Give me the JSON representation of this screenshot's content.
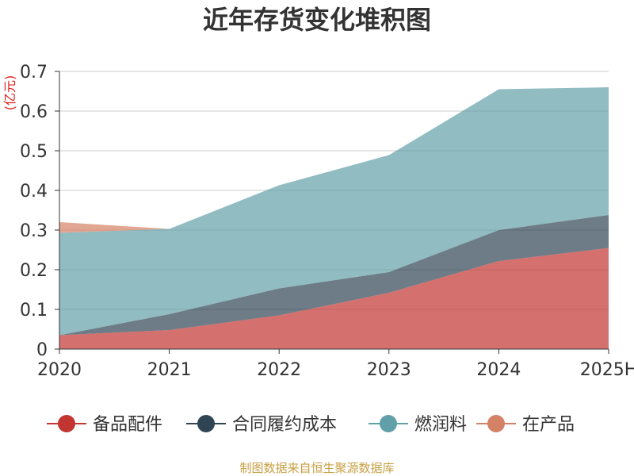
{
  "chart_data": {
    "type": "area",
    "stacked": true,
    "title": "近年存货变化堆积图",
    "y_unit": "(亿元)",
    "categories": [
      "2020",
      "2021",
      "2022",
      "2023",
      "2024",
      "2025H"
    ],
    "ylim": [
      0,
      0.7
    ],
    "y_ticks": [
      "0",
      "0.1",
      "0.2",
      "0.3",
      "0.4",
      "0.5",
      "0.6",
      "0.7"
    ],
    "grid": true,
    "legend_position": "bottom",
    "series": [
      {
        "name": "备品配件",
        "color": "#c23531",
        "values": [
          0.035,
          0.048,
          0.085,
          0.142,
          0.222,
          0.255
        ]
      },
      {
        "name": "合同履约成本",
        "color": "#2f4554",
        "values": [
          0.0,
          0.04,
          0.068,
          0.052,
          0.078,
          0.083
        ]
      },
      {
        "name": "燃润料",
        "color": "#61a0a8",
        "values": [
          0.258,
          0.215,
          0.26,
          0.295,
          0.355,
          0.322
        ]
      },
      {
        "name": "在产品",
        "color": "#d48265",
        "values": [
          0.027,
          0.0,
          0.0,
          0.0,
          0.0,
          0.0
        ]
      }
    ],
    "source": "制图数据来自恒生聚源数据库"
  }
}
